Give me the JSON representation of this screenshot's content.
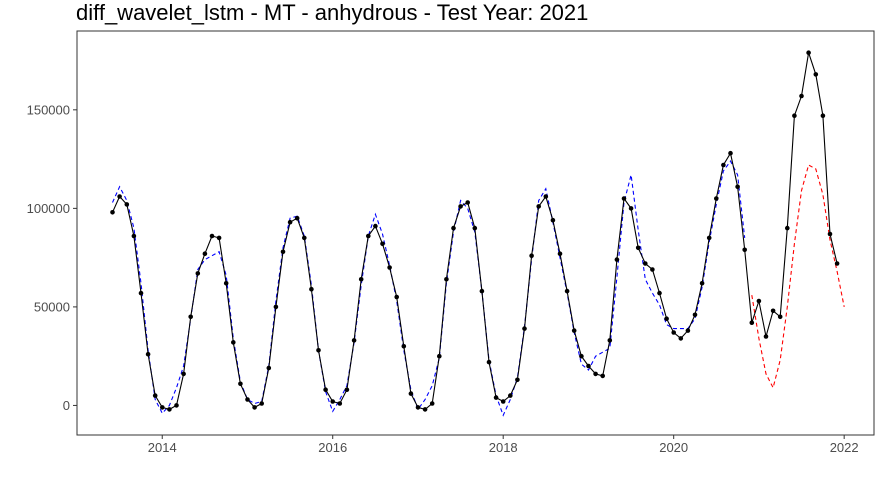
{
  "chart_data": {
    "type": "line",
    "title": "diff_wavelet_lstm - MT - anhydrous - Test Year: 2021",
    "xlabel": "",
    "ylabel": "",
    "xlim": [
      2013.0,
      2022.35
    ],
    "ylim": [
      -15000,
      190000
    ],
    "x_ticks": [
      2014,
      2016,
      2018,
      2020,
      2022
    ],
    "x_tick_labels": [
      "2014",
      "2016",
      "2018",
      "2020",
      "2022"
    ],
    "y_ticks": [
      0,
      50000,
      100000,
      150000
    ],
    "y_tick_labels": [
      "0",
      "50000",
      "100000",
      "150000"
    ],
    "grid": false,
    "legend": "none",
    "x_start": 2013.417,
    "x_step": 0.08333,
    "series": [
      {
        "style": "solid-with-points",
        "color": "#000000",
        "values": [
          98000,
          106000,
          102000,
          86000,
          57000,
          26000,
          5000,
          -1000,
          -2000,
          0,
          16000,
          45000,
          67000,
          77000,
          86000,
          85000,
          62000,
          32000,
          11000,
          3000,
          -1000,
          1000,
          19000,
          50000,
          78000,
          93000,
          95000,
          85000,
          59000,
          28000,
          8000,
          2000,
          1000,
          8000,
          33000,
          64000,
          86000,
          91000,
          82000,
          70000,
          55000,
          30000,
          6000,
          -1000,
          -2000,
          1000,
          25000,
          64000,
          90000,
          101000,
          103000,
          90000,
          58000,
          22000,
          4000,
          2000,
          5000,
          13000,
          39000,
          76000,
          101000,
          106000,
          94000,
          77000,
          58000,
          38000,
          25000,
          20000,
          16000,
          15000,
          33000,
          74000,
          105000,
          100000,
          80000,
          72000,
          69000,
          57000,
          44000,
          37000,
          34000,
          38000,
          46000,
          62000,
          85000,
          105000,
          122000,
          128000,
          111000,
          79000,
          42000,
          53000,
          35000,
          48000,
          45000,
          90000,
          147000,
          157000,
          179000,
          168000,
          147000,
          87000,
          72000
        ]
      },
      {
        "style": "dashed",
        "color": "#0000ff",
        "start_index": 0,
        "values": [
          103000,
          111000,
          104000,
          90000,
          62000,
          28000,
          3000,
          -4000,
          0,
          9000,
          20000,
          44000,
          69000,
          74000,
          76000,
          78000,
          66000,
          34000,
          12000,
          3000,
          1000,
          2000,
          20000,
          53000,
          80000,
          95000,
          96000,
          86000,
          61000,
          28000,
          7000,
          -3000,
          3000,
          10000,
          32000,
          61000,
          86000,
          97000,
          87000,
          71000,
          53000,
          28000,
          8000,
          -2000,
          3000,
          10000,
          24000,
          62000,
          88000,
          104000,
          100000,
          88000,
          58000,
          23000,
          5000,
          -5000,
          3000,
          14000,
          40000,
          74000,
          104000,
          110000,
          93000,
          75000,
          57000,
          37000,
          21000,
          18000,
          25000,
          27000,
          29000,
          65000,
          103000,
          117000,
          89000,
          64000,
          57000,
          51000,
          41000,
          39000,
          39000,
          39000,
          44000,
          60000,
          83000,
          102000,
          119000,
          124000,
          117000,
          85000
        ]
      },
      {
        "style": "dashed",
        "color": "#ff0000",
        "start_index": 90,
        "values": [
          56000,
          34000,
          16000,
          9000,
          23000,
          50000,
          82000,
          109000,
          122000,
          120000,
          107000,
          84000,
          68000,
          50000
        ]
      }
    ]
  }
}
